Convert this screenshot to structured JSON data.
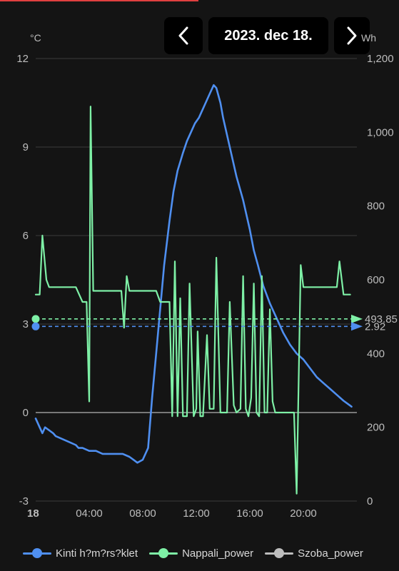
{
  "header": {
    "date_label": "2023. dec 18.",
    "prev_icon": "chevron-left-icon",
    "next_icon": "chevron-right-icon"
  },
  "chart_data": {
    "type": "line",
    "units": {
      "left": "°C",
      "right": "Wh"
    },
    "x_ticks": [
      "18",
      "04:00",
      "08:00",
      "12:00",
      "16:00",
      "20:00"
    ],
    "xlim": [
      0,
      24
    ],
    "y_left": {
      "lim": [
        -3,
        12
      ],
      "ticks": [
        "12",
        "9",
        "6",
        "3",
        "0",
        "-3"
      ]
    },
    "y_right": {
      "lim": [
        0,
        1200
      ],
      "ticks": [
        "1,200",
        "1,000",
        "800",
        "600",
        "400",
        "200",
        "0"
      ]
    },
    "grid": true,
    "legend_position": "bottom",
    "series": [
      {
        "name": "Kinti h?m?rs?klet",
        "color": "#4f8ff0",
        "axis": "left",
        "x": [
          0.0,
          0.3,
          0.5,
          0.7,
          1.0,
          1.3,
          1.5,
          2.0,
          2.5,
          3.0,
          3.2,
          3.5,
          4.0,
          4.5,
          5.0,
          5.5,
          6.0,
          6.5,
          7.0,
          7.3,
          7.6,
          8.0,
          8.4,
          8.7,
          9.0,
          9.3,
          9.6,
          10.0,
          10.3,
          10.6,
          11.0,
          11.3,
          11.6,
          11.9,
          12.2,
          12.5,
          12.8,
          13.1,
          13.3,
          13.5,
          13.8,
          14.0,
          14.5,
          15.0,
          15.5,
          16.0,
          16.3,
          16.6,
          17.0,
          17.5,
          18.0,
          18.5,
          19.0,
          19.5,
          20.0,
          20.5,
          21.0,
          21.5,
          22.0,
          22.5,
          23.0,
          23.3,
          23.6
        ],
        "y": [
          -0.2,
          -0.5,
          -0.7,
          -0.5,
          -0.6,
          -0.7,
          -0.8,
          -0.9,
          -1.0,
          -1.1,
          -1.2,
          -1.2,
          -1.3,
          -1.3,
          -1.4,
          -1.4,
          -1.4,
          -1.4,
          -1.5,
          -1.6,
          -1.7,
          -1.6,
          -1.2,
          0.5,
          2.0,
          3.5,
          5.0,
          6.5,
          7.5,
          8.2,
          8.8,
          9.2,
          9.5,
          9.8,
          10.0,
          10.3,
          10.6,
          10.9,
          11.1,
          11.0,
          10.5,
          10.0,
          9.0,
          8.0,
          7.2,
          6.2,
          5.5,
          5.0,
          4.3,
          3.7,
          3.2,
          2.7,
          2.3,
          2.0,
          1.8,
          1.5,
          1.2,
          1.0,
          0.8,
          0.6,
          0.4,
          0.3,
          0.2
        ]
      },
      {
        "name": "Nappali_power",
        "color": "#7ef0a6",
        "axis": "right",
        "x": [
          0.0,
          0.3,
          0.5,
          0.8,
          1.0,
          1.5,
          2.0,
          2.5,
          3.0,
          3.5,
          3.8,
          4.0,
          4.1,
          4.3,
          4.6,
          5.0,
          5.5,
          6.0,
          6.4,
          6.6,
          6.8,
          7.0,
          7.2,
          7.5,
          8.0,
          8.5,
          9.0,
          9.3,
          9.5,
          9.7,
          10.0,
          10.2,
          10.4,
          10.6,
          10.8,
          11.0,
          11.2,
          11.3,
          11.5,
          11.8,
          12.0,
          12.1,
          12.3,
          12.5,
          12.8,
          13.0,
          13.3,
          13.5,
          13.8,
          14.0,
          14.3,
          14.5,
          14.8,
          15.0,
          15.3,
          15.5,
          15.7,
          15.9,
          16.1,
          16.3,
          16.5,
          16.7,
          16.9,
          17.1,
          17.3,
          17.5,
          17.7,
          17.9,
          18.0,
          18.5,
          19.0,
          19.3,
          19.5,
          19.8,
          20.0,
          20.5,
          21.0,
          21.5,
          22.0,
          22.3,
          22.5,
          22.7,
          23.0,
          23.5
        ],
        "y": [
          560,
          560,
          720,
          600,
          580,
          580,
          580,
          580,
          580,
          540,
          540,
          270,
          1070,
          570,
          570,
          570,
          570,
          570,
          570,
          470,
          610,
          570,
          570,
          570,
          570,
          570,
          570,
          540,
          540,
          540,
          540,
          230,
          650,
          230,
          550,
          230,
          230,
          230,
          590,
          230,
          250,
          460,
          230,
          230,
          450,
          250,
          250,
          660,
          240,
          240,
          240,
          540,
          260,
          240,
          250,
          610,
          250,
          230,
          280,
          590,
          240,
          230,
          610,
          240,
          240,
          520,
          270,
          240,
          240,
          240,
          240,
          240,
          20,
          640,
          580,
          580,
          580,
          580,
          580,
          580,
          580,
          650,
          560,
          560
        ]
      },
      {
        "name": "Szoba_power",
        "color": "#bdbdbd",
        "axis": "right",
        "x": [],
        "y": []
      }
    ],
    "markers": [
      {
        "series": "Nappali_power",
        "value": 493.85,
        "label": "493.85"
      },
      {
        "series": "Kinti h?m?rs?klet",
        "value": 2.92,
        "label": "2.92"
      }
    ]
  }
}
